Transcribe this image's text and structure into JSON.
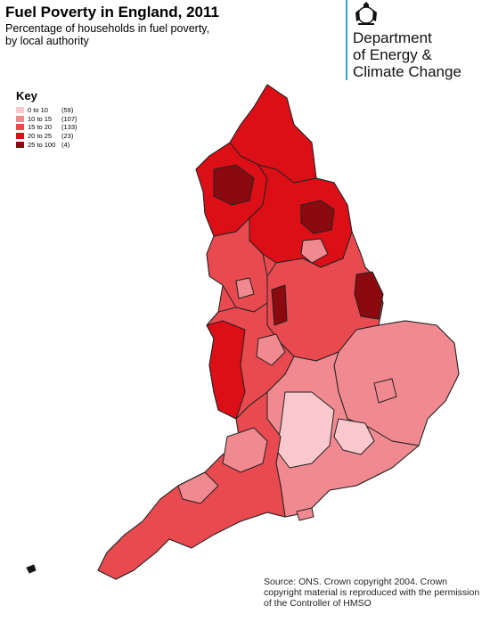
{
  "title": "Fuel Poverty in England, 2011",
  "subtitle": "Percentage of households in fuel poverty, by local authority",
  "department": {
    "line1": "Department",
    "line2": "of Energy &",
    "line3": "Climate Change",
    "rule_color": "#3aa0c8"
  },
  "key": {
    "title": "Key",
    "items": [
      {
        "label": "0 to  10",
        "count": "(59)",
        "color": "#f8c8cc"
      },
      {
        "label": "10 to  15",
        "count": "(107)",
        "color": "#f08a90"
      },
      {
        "label": "15 to  20",
        "count": "(133)",
        "color": "#e84a50"
      },
      {
        "label": "20 to  25",
        "count": "(23)",
        "color": "#dc0e16"
      },
      {
        "label": "25 to 100",
        "count": "(4)",
        "color": "#8a0a10"
      }
    ]
  },
  "source": "Source: ONS. Crown copyright 2004. Crown copyright material is reproduced with the permission of the Controller of HMSO"
}
